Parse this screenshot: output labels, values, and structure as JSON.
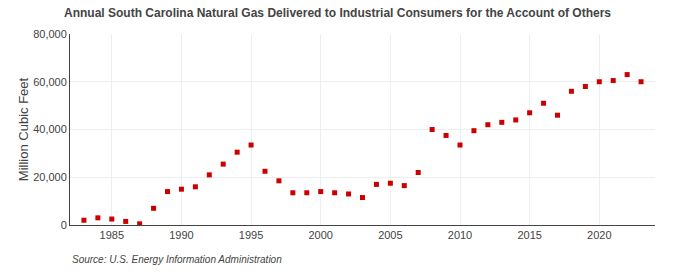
{
  "chart_data": {
    "type": "scatter",
    "title": "Annual South Carolina Natural Gas Delivered to Industrial Consumers for the Account of Others",
    "ylabel": "Million Cubic Feet",
    "annotations": [
      "Source: U.S. Energy Information Administration"
    ],
    "x": [
      1983,
      1984,
      1985,
      1986,
      1987,
      1988,
      1989,
      1990,
      1991,
      1992,
      1993,
      1994,
      1995,
      1996,
      1997,
      1998,
      1999,
      2000,
      2001,
      2002,
      2003,
      2004,
      2005,
      2006,
      2007,
      2008,
      2009,
      2010,
      2011,
      2012,
      2013,
      2014,
      2015,
      2016,
      2017,
      2018,
      2019,
      2020,
      2021,
      2022,
      2023
    ],
    "values": [
      2000,
      3000,
      2500,
      1500,
      500,
      7000,
      14000,
      15000,
      16000,
      21000,
      25500,
      30500,
      33500,
      22500,
      18500,
      13500,
      13500,
      14000,
      13500,
      13000,
      11500,
      17000,
      17500,
      16500,
      22000,
      40000,
      37500,
      33500,
      39500,
      42000,
      43000,
      44000,
      47000,
      51000,
      46000,
      56000,
      58000,
      60000,
      60500,
      63000,
      60000
    ],
    "color": "#cc0000",
    "marker": "square",
    "xlim": [
      1982,
      2024
    ],
    "xticks": [
      1985,
      1990,
      1995,
      2000,
      2005,
      2010,
      2015,
      2020
    ],
    "ylim": [
      0,
      80000
    ],
    "yticks": [
      0,
      {
        "value": 20000,
        "label": "20,000"
      },
      {
        "value": 40000,
        "label": "40,000"
      },
      {
        "value": 60000,
        "label": "60,000"
      },
      {
        "value": 80000,
        "label": "80,000"
      }
    ],
    "grid": true
  }
}
